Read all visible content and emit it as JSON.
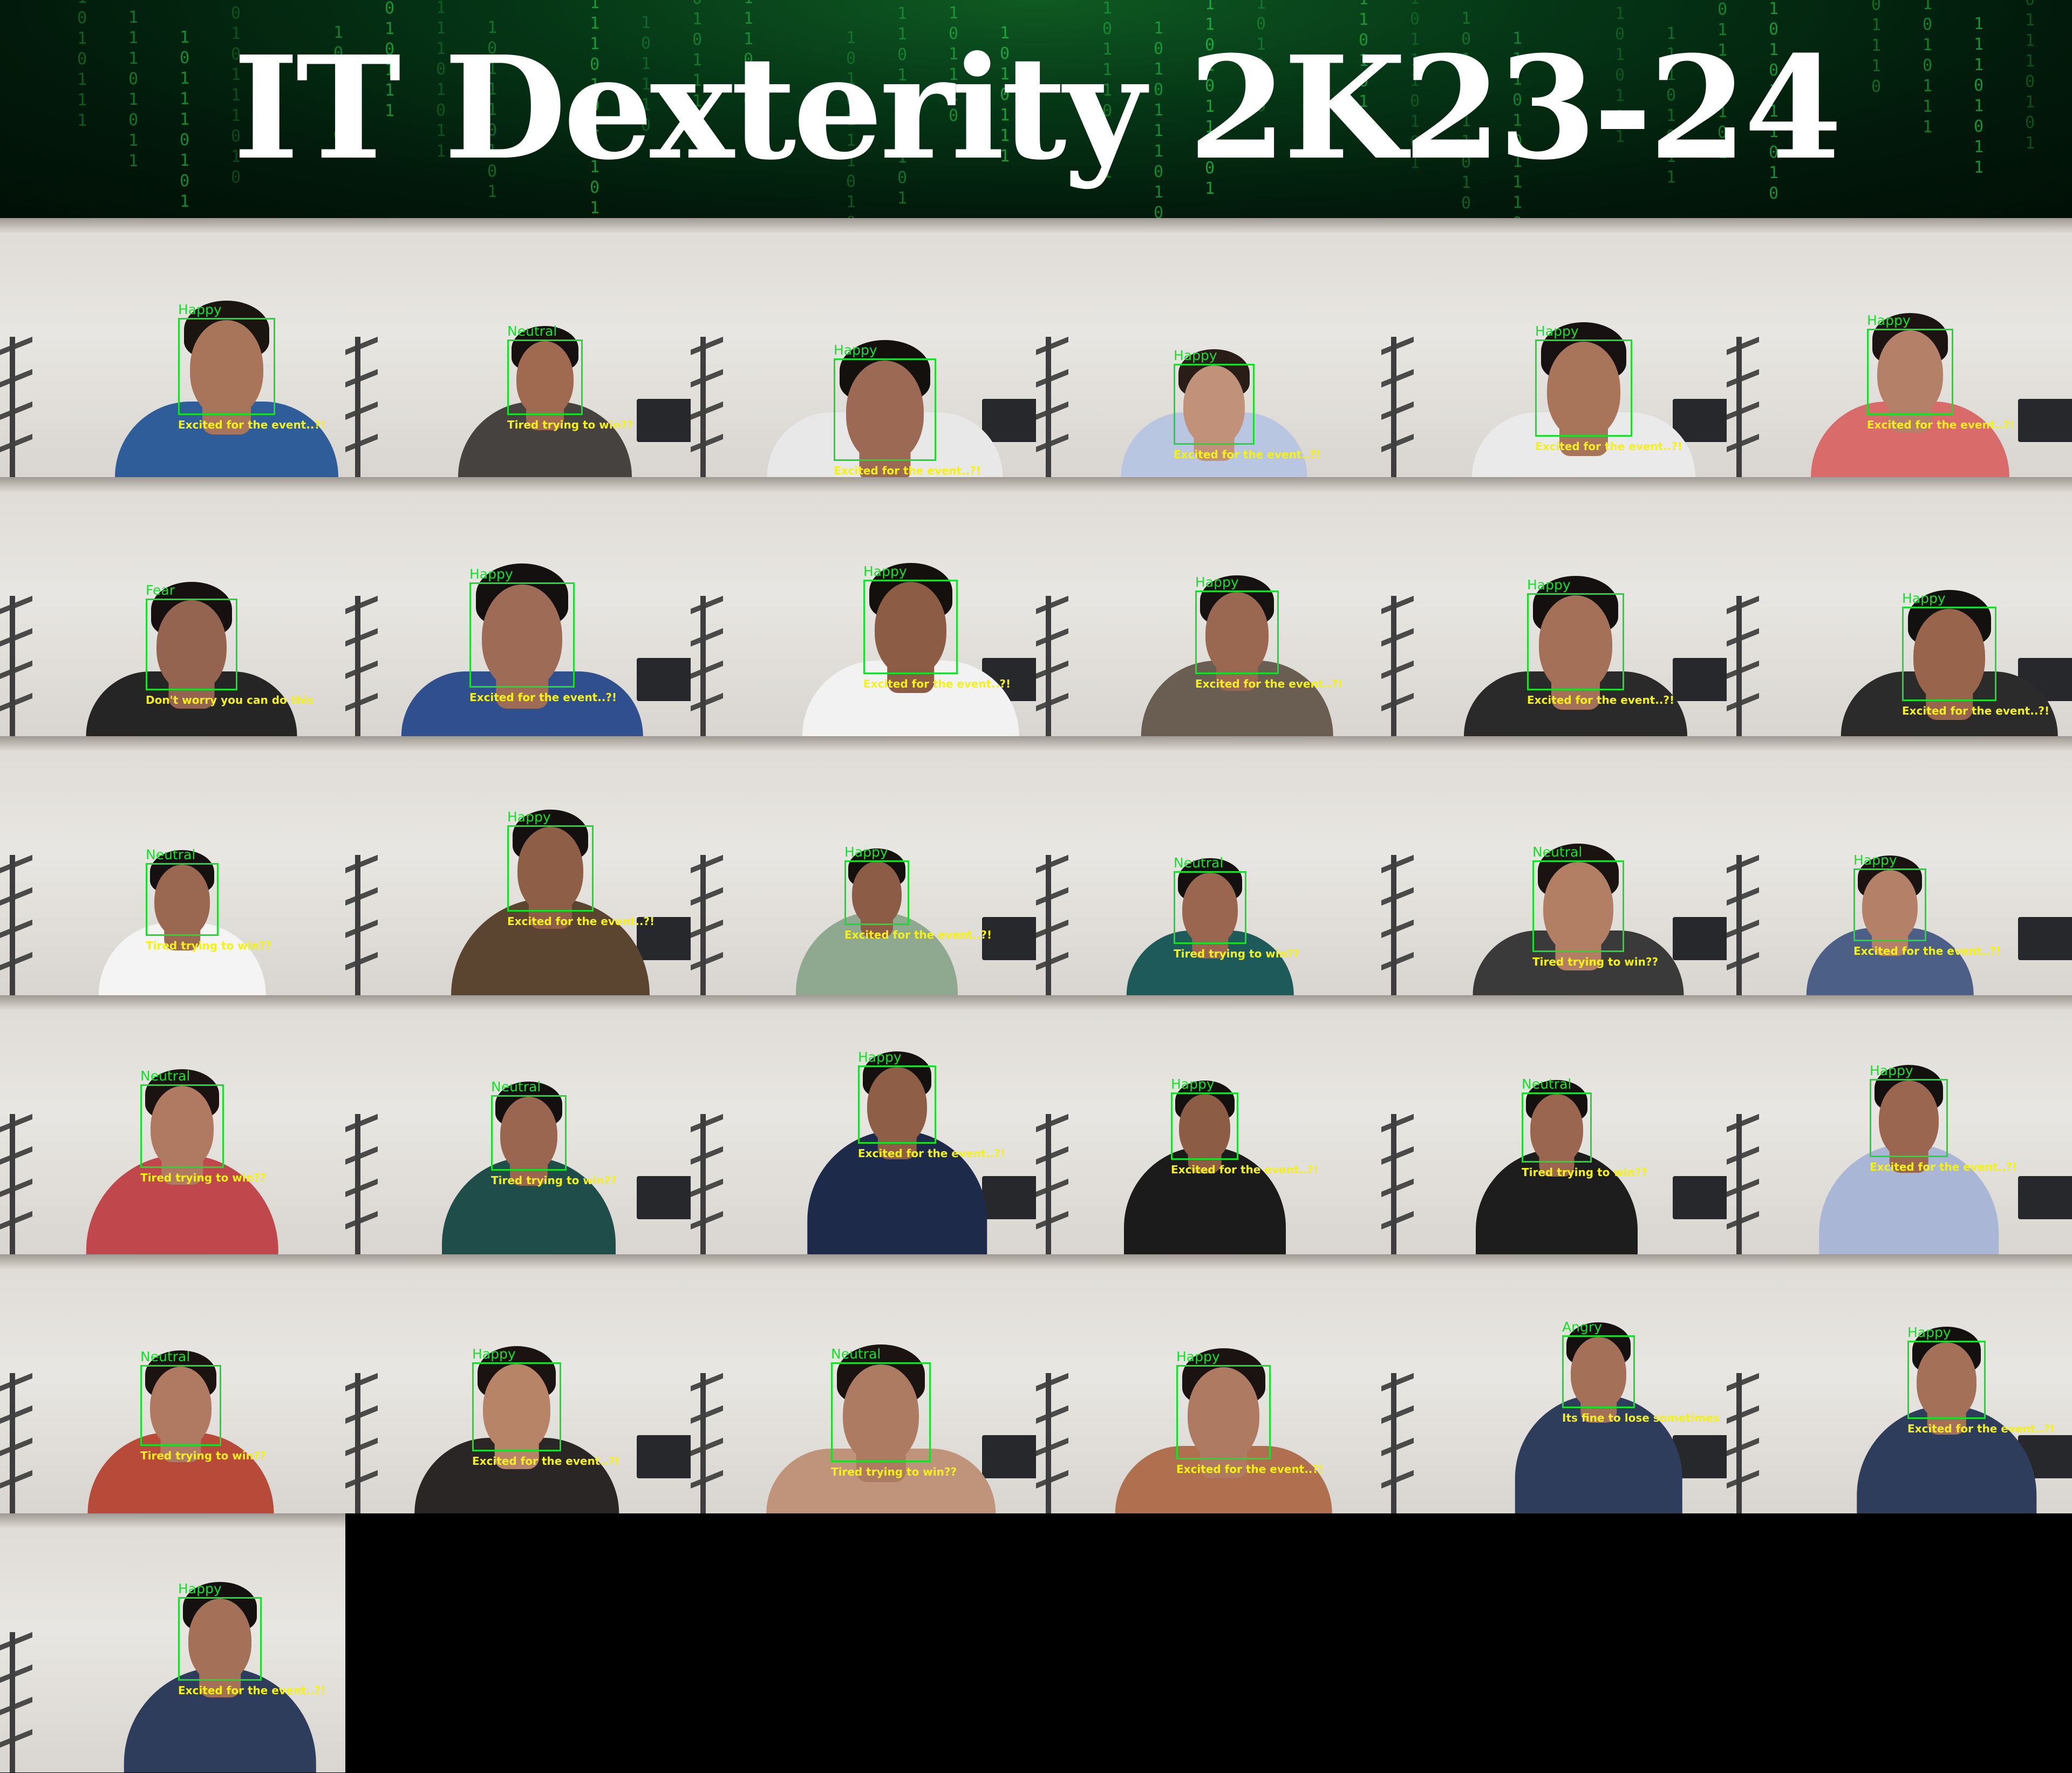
{
  "banner": {
    "title": "IT Dexterity 2K23-24"
  },
  "tiles": [
    {
      "emotion": "Happy",
      "caption": "Excited for the event..?!",
      "shirt": "#2e5d9a",
      "skin": "#a8745a",
      "hair": "#1b1512",
      "face": [
        330,
        185,
        180,
        180
      ]
    },
    {
      "emotion": "Neutral",
      "caption": "Tired trying to win??",
      "shirt": "#46423f",
      "skin": "#a06a50",
      "hair": "#161110",
      "face": [
        300,
        225,
        140,
        140
      ]
    },
    {
      "emotion": "Happy",
      "caption": "Excited for the event..?!",
      "shirt": "#e8e8e8",
      "skin": "#9c6a54",
      "hair": "#14100e",
      "face": [
        265,
        260,
        190,
        190
      ]
    },
    {
      "emotion": "Happy",
      "caption": "Excited for the event..?!",
      "shirt": "#b8c6e2",
      "skin": "#c2917a",
      "hair": "#2a1c16",
      "face": [
        255,
        270,
        150,
        150
      ]
    },
    {
      "emotion": "Happy",
      "caption": "Excited for the event..?!",
      "shirt": "#eaeaea",
      "skin": "#a8745a",
      "hair": "#171211",
      "face": [
        285,
        225,
        180,
        180
      ]
    },
    {
      "emotion": "Happy",
      "caption": "Excited for the event..?!",
      "shirt": "#d96b6b",
      "skin": "#b58068",
      "hair": "#1c1412",
      "face": [
        260,
        205,
        160,
        160
      ]
    },
    {
      "emotion": "Fear",
      "caption": "Don't worry you can do this",
      "shirt": "#252525",
      "skin": "#946450",
      "hair": "#161110",
      "face": [
        270,
        225,
        170,
        170
      ]
    },
    {
      "emotion": "Happy",
      "caption": "Excited for the event..?!",
      "shirt": "#2f4f8f",
      "skin": "#9e6c56",
      "hair": "#141010",
      "face": [
        230,
        195,
        195,
        195
      ]
    },
    {
      "emotion": "Happy",
      "caption": "Excited for the event..?!",
      "shirt": "#f2f2f2",
      "skin": "#8c5c44",
      "hair": "#14100e",
      "face": [
        320,
        190,
        175,
        175
      ]
    },
    {
      "emotion": "Happy",
      "caption": "Excited for the event..?!",
      "shirt": "#6a5e52",
      "skin": "#9a6850",
      "hair": "#171212",
      "face": [
        295,
        210,
        155,
        155
      ]
    },
    {
      "emotion": "Happy",
      "caption": "Excited for the event..?!",
      "shirt": "#2a2a2a",
      "skin": "#a57058",
      "hair": "#141010",
      "face": [
        270,
        215,
        180,
        180
      ]
    },
    {
      "emotion": "Happy",
      "caption": "Excited for the event..?!",
      "shirt": "#2b2b2b",
      "skin": "#98644c",
      "hair": "#131010",
      "face": [
        325,
        240,
        175,
        175
      ]
    },
    {
      "emotion": "Neutral",
      "caption": "Tired trying to win??",
      "shirt": "#f4f4f4",
      "skin": "#9a6850",
      "hair": "#161110",
      "face": [
        270,
        235,
        135,
        135
      ]
    },
    {
      "emotion": "Happy",
      "caption": "Excited for the event..?!",
      "shirt": "#5c4530",
      "skin": "#8e5e46",
      "hair": "#141010",
      "face": [
        300,
        165,
        160,
        160
      ]
    },
    {
      "emotion": "Happy",
      "caption": "Excited for the event..?!",
      "shirt": "#8fa890",
      "skin": "#8c5c46",
      "hair": "#141010",
      "face": [
        285,
        230,
        120,
        120
      ]
    },
    {
      "emotion": "Neutral",
      "caption": "Tired trying to win??",
      "shirt": "#1f5a5a",
      "skin": "#9a6650",
      "hair": "#141010",
      "face": [
        255,
        250,
        135,
        135
      ]
    },
    {
      "emotion": "Neutral",
      "caption": "Tired trying to win??",
      "shirt": "#3a3a3a",
      "skin": "#b27e64",
      "hair": "#1a1311",
      "face": [
        280,
        230,
        170,
        170
      ]
    },
    {
      "emotion": "Happy",
      "caption": "Excited for the event..?!",
      "shirt": "#4c5f86",
      "skin": "#b58068",
      "hair": "#1b1311",
      "face": [
        235,
        245,
        135,
        135
      ]
    },
    {
      "emotion": "Neutral",
      "caption": "Tired trying to win??",
      "shirt": "#c0474c",
      "skin": "#b07a62",
      "hair": "#1a1311",
      "face": [
        260,
        165,
        155,
        155
      ]
    },
    {
      "emotion": "Neutral",
      "caption": "Tired trying to win??",
      "shirt": "#1f4d4a",
      "skin": "#9a6650",
      "hair": "#141010",
      "face": [
        270,
        185,
        140,
        140
      ]
    },
    {
      "emotion": "Happy",
      "caption": "Excited for the event..?!",
      "shirt": "#1e2a4a",
      "skin": "#8e5e46",
      "hair": "#141010",
      "face": [
        310,
        130,
        145,
        145
      ]
    },
    {
      "emotion": "Happy",
      "caption": "Excited for the event..?!",
      "shirt": "#1b1b1b",
      "skin": "#8c5c44",
      "hair": "#141010",
      "face": [
        250,
        180,
        125,
        125
      ]
    },
    {
      "emotion": "Neutral",
      "caption": "Tired trying to win??",
      "shirt": "#1d1d1d",
      "skin": "#9a6650",
      "hair": "#141010",
      "face": [
        260,
        180,
        130,
        130
      ]
    },
    {
      "emotion": "Happy",
      "caption": "Excited for the event..?!",
      "shirt": "#a9b6d6",
      "skin": "#9a6650",
      "hair": "#141010",
      "face": [
        265,
        155,
        145,
        145
      ]
    },
    {
      "emotion": "Neutral",
      "caption": "Tired trying to win??",
      "shirt": "#b84a3a",
      "skin": "#b07a62",
      "hair": "#1a1311",
      "face": [
        260,
        205,
        150,
        150
      ]
    },
    {
      "emotion": "Happy",
      "caption": "Excited for the event..?!",
      "shirt": "#2a2626",
      "skin": "#b88468",
      "hair": "#1a1311",
      "face": [
        235,
        200,
        165,
        165
      ]
    },
    {
      "emotion": "Neutral",
      "caption": "Tired trying to win??",
      "shirt": "#c0947a",
      "skin": "#ad7a62",
      "hair": "#1a1311",
      "face": [
        260,
        200,
        185,
        185
      ]
    },
    {
      "emotion": "Happy",
      "caption": "Excited for the event..?!",
      "shirt": "#b07050",
      "skin": "#ae7b62",
      "hair": "#1a1311",
      "face": [
        260,
        205,
        175,
        175
      ]
    },
    {
      "emotion": "Angry",
      "caption": "Its fine to lose sometimes",
      "shirt": "#2f3d5c",
      "skin": "#a47058",
      "hair": "#141010",
      "face": [
        335,
        150,
        135,
        135
      ]
    },
    {
      "emotion": "Happy",
      "caption": "Excited for the event..?!",
      "shirt": "#2f3d5c",
      "skin": "#a47058",
      "hair": "#141010",
      "face": [
        335,
        160,
        145,
        145
      ]
    },
    {
      "emotion": "Happy",
      "caption": "Excited for the event..?!",
      "shirt": "#2f3d5c",
      "skin": "#a47058",
      "hair": "#141010",
      "face": [
        330,
        155,
        155,
        155
      ]
    }
  ]
}
